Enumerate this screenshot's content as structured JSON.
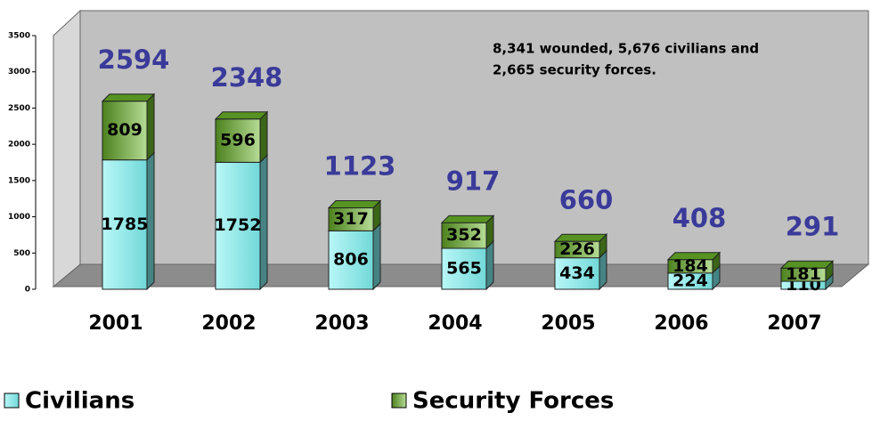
{
  "chart_data": {
    "type": "bar3d_stacked",
    "categories": [
      "2001",
      "2002",
      "2003",
      "2004",
      "2005",
      "2006",
      "2007"
    ],
    "series": [
      {
        "name": "Civilians",
        "color": "#7ff0f0",
        "values": [
          1785,
          1752,
          806,
          565,
          434,
          224,
          110
        ]
      },
      {
        "name": "Security Forces",
        "color": "#6cb82a",
        "values": [
          809,
          596,
          317,
          352,
          226,
          184,
          181
        ]
      }
    ],
    "totals": [
      2594,
      2348,
      1123,
      917,
      660,
      408,
      291
    ],
    "annotation": [
      "8,341 wounded, 5,676 civilians and",
      "2,665 security forces."
    ],
    "ylim": [
      0,
      3500
    ],
    "yticks": [
      0,
      500,
      1000,
      1500,
      2000,
      2500,
      3000,
      3500
    ]
  }
}
